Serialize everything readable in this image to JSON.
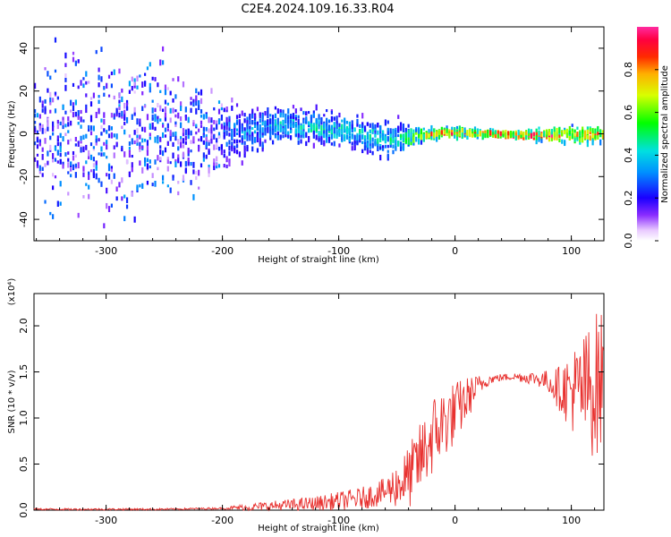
{
  "title": "C2E4.2024.109.16.33.R04",
  "colors": {
    "snr_line": "#e8312f",
    "spectro_core": "#ff1a1a",
    "spectro_mid": "#00d9a0",
    "spectro_low": "#2200ff",
    "spectro_faint": "#c9a6ff"
  },
  "chart_data": [
    {
      "type": "heatmap",
      "xlabel": "Height of straight line (km)",
      "ylabel": "Frequency (Hz)",
      "xlim": [
        -362,
        128
      ],
      "ylim": [
        -50,
        50
      ],
      "x_ticks": [
        -300,
        -200,
        -100,
        0,
        100
      ],
      "y_ticks": [
        -40,
        -20,
        0,
        20,
        40
      ],
      "x_tick_labels": [
        "-300",
        "-200",
        "-100",
        "0",
        "100"
      ],
      "y_tick_labels": [
        "-40",
        "-20",
        "0",
        "20",
        "40"
      ],
      "colorbar": {
        "label": "Normalized spectral amplitude",
        "range": [
          0,
          1
        ],
        "ticks": [
          0.0,
          0.2,
          0.4,
          0.6,
          0.8
        ],
        "tick_labels": [
          "0.0",
          "0.2",
          "0.4",
          "0.6",
          "0.8"
        ]
      },
      "ridge": [
        {
          "x": -362,
          "f_center": 0,
          "f_spread": 50,
          "amp": 0.2
        },
        {
          "x": -250,
          "f_center": 0,
          "f_spread": 48,
          "amp": 0.22
        },
        {
          "x": -200,
          "f_center": 0,
          "f_spread": 20,
          "amp": 0.3
        },
        {
          "x": -150,
          "f_center": 5,
          "f_spread": 12,
          "amp": 0.4
        },
        {
          "x": -100,
          "f_center": 2,
          "f_spread": 10,
          "amp": 0.45
        },
        {
          "x": -50,
          "f_center": -3,
          "f_spread": 12,
          "amp": 0.45
        },
        {
          "x": -30,
          "f_center": 0,
          "f_spread": 4,
          "amp": 0.7
        },
        {
          "x": 0,
          "f_center": 1,
          "f_spread": 3,
          "amp": 0.9
        },
        {
          "x": 50,
          "f_center": 0,
          "f_spread": 2,
          "amp": 0.95
        },
        {
          "x": 90,
          "f_center": 0,
          "f_spread": 5,
          "amp": 0.85
        },
        {
          "x": 128,
          "f_center": 0,
          "f_spread": 6,
          "amp": 0.8
        }
      ]
    },
    {
      "type": "line",
      "xlabel": "Height of straight line (km)",
      "ylabel": "SNR (10 * v/v)",
      "y_scale_label": "(x10⁴)",
      "xlim": [
        -362,
        128
      ],
      "ylim": [
        0,
        2.35
      ],
      "x_ticks": [
        -300,
        -200,
        -100,
        0,
        100
      ],
      "y_ticks": [
        0.0,
        0.5,
        1.0,
        1.5,
        2.0
      ],
      "x_tick_labels": [
        "-300",
        "-200",
        "-100",
        "0",
        "100"
      ],
      "y_tick_labels": [
        "0.0",
        "0.5",
        "1.0",
        "1.5",
        "2.0"
      ],
      "series": [
        {
          "x": [
            -362,
            -300,
            -250,
            -200,
            -180,
            -150,
            -120,
            -100,
            -80,
            -60,
            -40,
            -30,
            -20,
            -10,
            0,
            10,
            20,
            30,
            40,
            50,
            60,
            70,
            80,
            90,
            100,
            110,
            120,
            128
          ],
          "y": [
            0.01,
            0.01,
            0.01,
            0.02,
            0.03,
            0.05,
            0.07,
            0.1,
            0.13,
            0.2,
            0.35,
            0.55,
            0.8,
            0.95,
            1.05,
            1.2,
            1.35,
            1.42,
            1.44,
            1.45,
            1.44,
            1.43,
            1.4,
            1.32,
            1.3,
            1.3,
            1.35,
            1.4
          ],
          "noise": [
            0.01,
            0.01,
            0.01,
            0.01,
            0.04,
            0.06,
            0.08,
            0.1,
            0.12,
            0.15,
            0.35,
            0.4,
            0.45,
            0.4,
            0.35,
            0.25,
            0.12,
            0.05,
            0.04,
            0.04,
            0.06,
            0.08,
            0.12,
            0.25,
            0.45,
            0.6,
            0.8,
            0.8
          ]
        }
      ]
    }
  ]
}
